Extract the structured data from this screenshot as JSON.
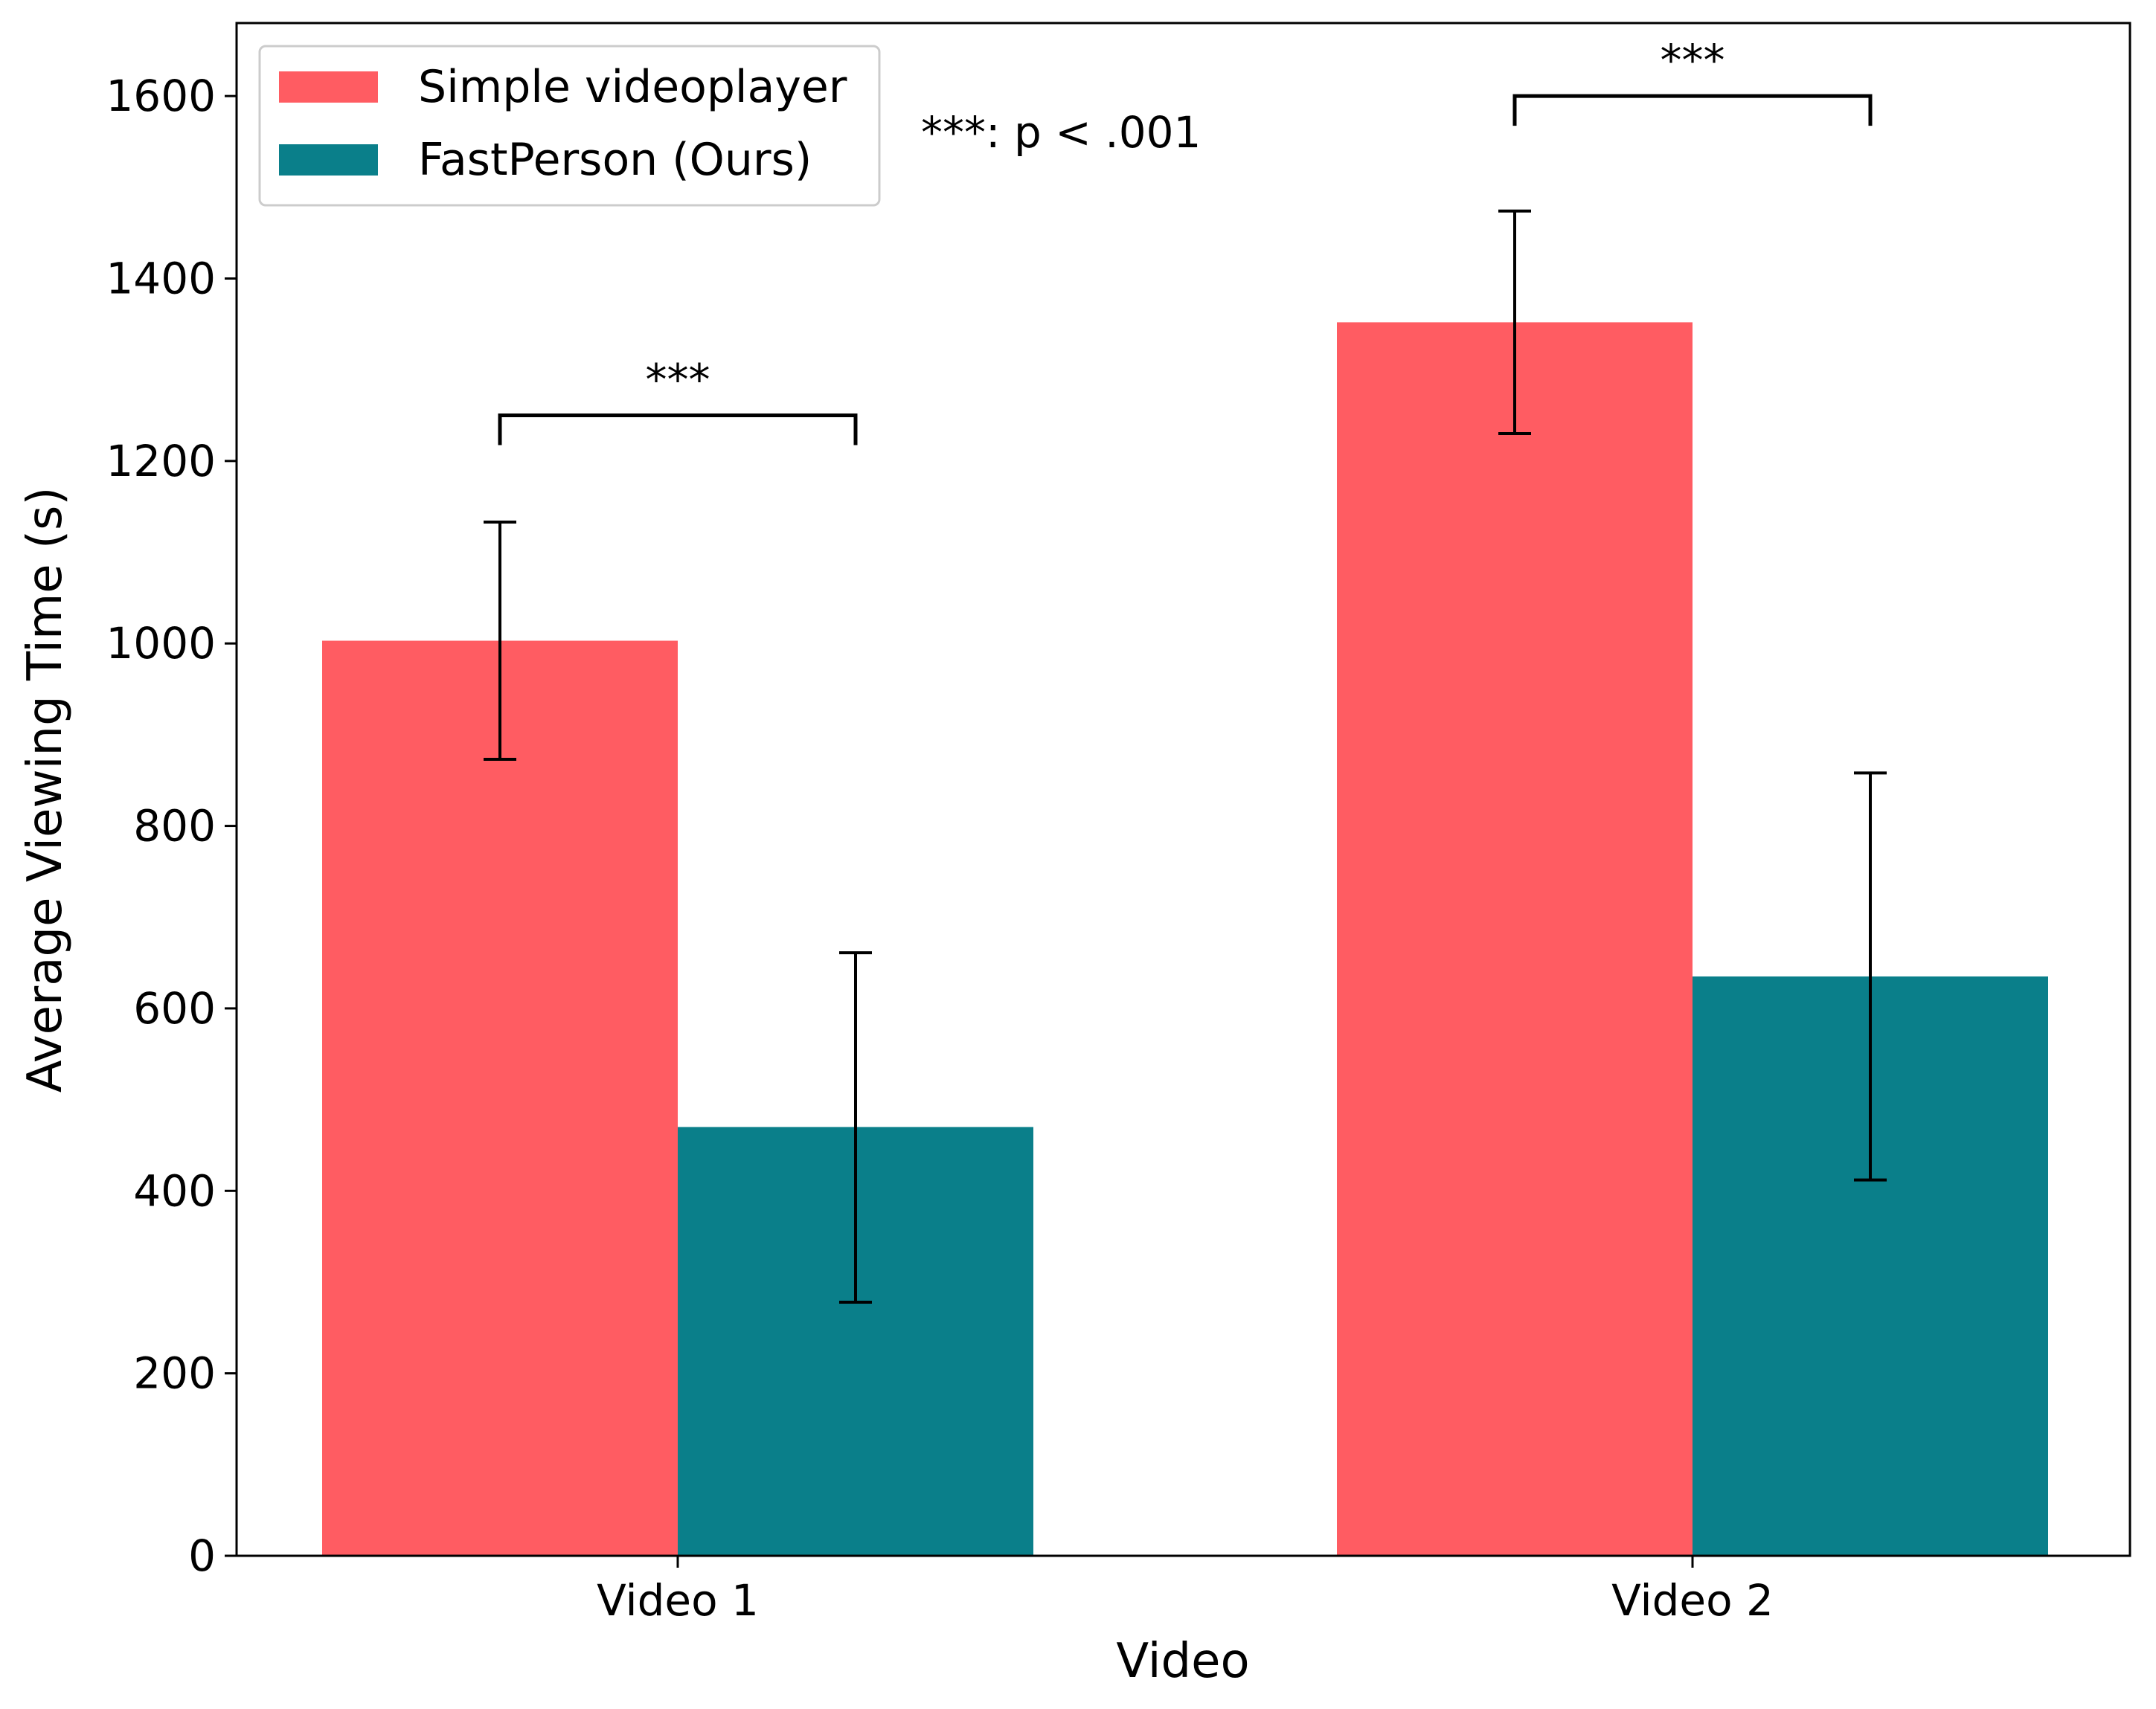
{
  "chart_data": {
    "type": "bar",
    "categories": [
      "Video 1",
      "Video 2"
    ],
    "series": [
      {
        "name": "Simple videoplayer",
        "color": "#ff5c62",
        "values": [
          1003,
          1352
        ],
        "error_low": [
          873,
          1230
        ],
        "error_high": [
          1133,
          1474
        ]
      },
      {
        "name": "FastPerson (Ours)",
        "color": "#0a7f8a",
        "values": [
          470,
          635
        ],
        "error_low": [
          278,
          412
        ],
        "error_high": [
          661,
          858
        ]
      }
    ],
    "xlabel": "Video",
    "ylabel": "Average Viewing Time (s)",
    "ylim": [
      0,
      1680
    ],
    "yticks": [
      0,
      200,
      400,
      600,
      800,
      1000,
      1200,
      1400,
      1600
    ],
    "ytick_labels": [
      "0",
      "200",
      "400",
      "600",
      "800",
      "1000",
      "1200",
      "1400",
      "1600"
    ],
    "legend_position": "top-left",
    "grid": false,
    "significance": [
      {
        "category": "Video 1",
        "bracket_y": 1250,
        "label": "***"
      },
      {
        "category": "Video 2",
        "bracket_y": 1600,
        "label": "***"
      }
    ],
    "annotation": "***: p < .001"
  }
}
